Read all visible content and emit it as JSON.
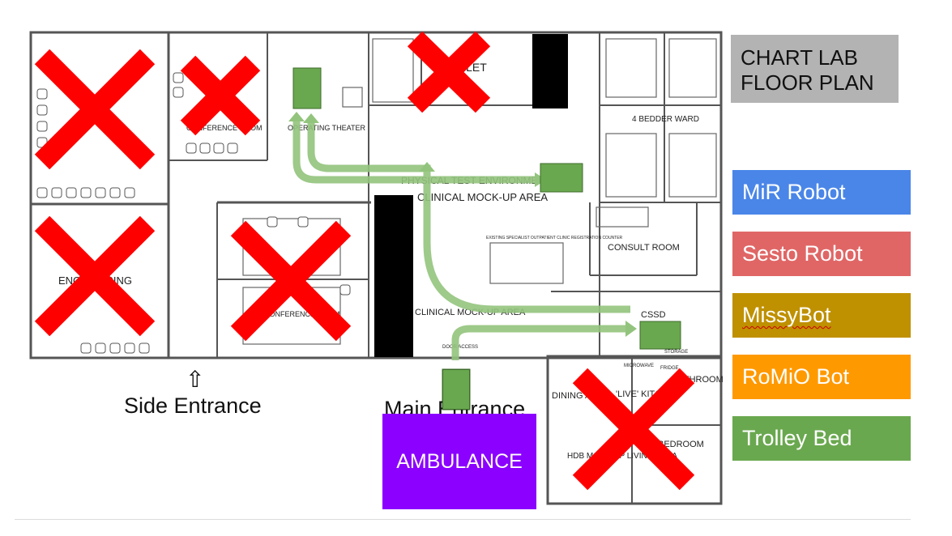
{
  "title": {
    "line1": "CHART LAB",
    "line2": "FLOOR PLAN"
  },
  "legend": {
    "items": [
      {
        "label": "MiR Robot",
        "color": "#4a86e8"
      },
      {
        "label": "Sesto Robot",
        "color": "#e06666"
      },
      {
        "label": "MissyBot",
        "color": "#bf9000"
      },
      {
        "label": "RoMiO Bot",
        "color": "#ff9900"
      },
      {
        "label": "Trolley Bed",
        "color": "#6aa84f"
      }
    ]
  },
  "ambulance": {
    "label": "AMBULANCE",
    "color": "#8b00ff"
  },
  "entrances": {
    "side": "Side Entrance",
    "main": "Main Entrance",
    "arrow": "⇧"
  },
  "rooms": {
    "conference_top": "CONFERENCE ROOM",
    "operating_theater": "OPERATING THEATER",
    "toilet": "TOILET",
    "ward": "4 BEDDER WARD",
    "physical_test": "PHYSICAL TEST ENVIRONMENT",
    "clinical_mockup": "CLINICAL MOCK-UP AREA",
    "clinical_mockup_lower": "CLINICAL MOCK-UP AREA",
    "consult": "CONSULT ROOM",
    "cssd": "CSSD",
    "engineering": "ENGINEERING",
    "conference_mid": "CONFERENCE ROOM",
    "dining": "DINING AREA",
    "live_kitchen": "'LIVE' KITCHEN",
    "bathroom": "BATHROOM",
    "bedroom": "BEDROOM",
    "hdb_mockup": "HDB MOCK-UP LIVING AREA",
    "door_access": "DOOR ACCESS",
    "microwave": "MICROWAVE",
    "fridge": "FRIDGE",
    "storage": "STORAGE",
    "registration": "EXISTING SPECIALIST OUTPATIENT CLINIC REGISTRATION COUNTER"
  },
  "colors": {
    "route": "#93c47d",
    "cross": "#ff0000",
    "wall": "#555555",
    "trolley": "#6aa84f",
    "blocked": "#000000"
  }
}
